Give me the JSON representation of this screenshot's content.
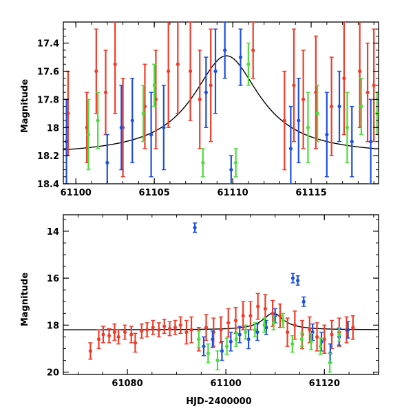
{
  "chart_data": [
    {
      "type": "scatter",
      "panel": "top",
      "title": "",
      "xlabel": "",
      "ylabel": "Magnitude",
      "xlim": [
        61099.2,
        61119.3
      ],
      "ylim": [
        18.4,
        17.25
      ],
      "y_inverted": true,
      "grid": false,
      "x_ticks": [
        61100,
        61105,
        61110,
        61115
      ],
      "x_tick_labels": [
        "61100",
        "61105",
        "61110",
        "61115"
      ],
      "y_ticks": [
        17.4,
        17.6,
        17.8,
        18.0,
        18.2,
        18.4
      ],
      "y_tick_labels": [
        "17.4",
        "17.6",
        "17.8",
        "18",
        "18.2",
        "18.4"
      ],
      "model": {
        "name": "microlensing model",
        "color": "#000000",
        "t0": 61109.6,
        "baseline": 18.2,
        "peak": 17.49,
        "width": 2.6
      },
      "series": [
        {
          "name": "red",
          "color": "#f23a2a",
          "x": [
            61099.5,
            61100.7,
            61101.3,
            61101.9,
            61102.5,
            61103.0,
            61104.4,
            61105.1,
            61105.9,
            61106.5,
            61107.3,
            61107.9,
            61108.6,
            61111.3,
            61113.3,
            61113.9,
            61114.5,
            61115.3,
            61116.3,
            61117.1,
            61118.1,
            61118.6,
            61119.0
          ],
          "y": [
            17.9,
            18.0,
            17.6,
            17.75,
            17.55,
            18.0,
            17.85,
            17.8,
            17.6,
            17.55,
            17.6,
            17.8,
            17.7,
            17.45,
            17.95,
            17.7,
            17.8,
            17.75,
            17.85,
            17.65,
            17.6,
            17.75,
            17.7
          ],
          "err": [
            0.3,
            0.25,
            0.3,
            0.3,
            0.35,
            0.35,
            0.3,
            0.35,
            0.4,
            0.35,
            0.35,
            0.35,
            0.4,
            0.2,
            0.35,
            0.4,
            0.35,
            0.4,
            0.35,
            0.4,
            0.4,
            0.35,
            0.4
          ]
        },
        {
          "name": "blue",
          "color": "#1f4fe0",
          "x": [
            61099.4,
            61102.0,
            61102.9,
            61103.6,
            61104.8,
            61105.6,
            61108.3,
            61108.9,
            61109.5,
            61109.9,
            61110.5,
            61113.7,
            61114.2,
            61116.0,
            61116.8,
            61117.6,
            61118.8
          ],
          "y": [
            18.1,
            18.25,
            18.0,
            17.95,
            18.05,
            18.0,
            17.75,
            17.6,
            17.45,
            18.3,
            17.5,
            18.15,
            17.95,
            18.05,
            17.85,
            18.1,
            18.1
          ],
          "err": [
            0.3,
            0.2,
            0.3,
            0.3,
            0.3,
            0.3,
            0.25,
            0.3,
            0.2,
            0.1,
            0.2,
            0.3,
            0.3,
            0.3,
            0.25,
            0.25,
            0.3
          ]
        },
        {
          "name": "green",
          "color": "#4ddc3c",
          "x": [
            61100.8,
            61101.4,
            61104.3,
            61105.0,
            61108.1,
            61110.2,
            61111.0,
            61114.8,
            61115.4,
            61117.3,
            61118.2,
            61119.2
          ],
          "y": [
            18.05,
            17.95,
            17.9,
            17.7,
            18.25,
            18.25,
            17.55,
            18.0,
            17.9,
            18.0,
            17.85,
            17.9
          ],
          "err": [
            0.25,
            0.2,
            0.2,
            0.15,
            0.1,
            0.1,
            0.15,
            0.25,
            0.2,
            0.25,
            0.2,
            0.15
          ]
        }
      ]
    },
    {
      "type": "scatter",
      "panel": "bottom",
      "title": "",
      "xlabel": "HJD-2400000",
      "ylabel": "Magnitude",
      "xlim": [
        61067,
        61131
      ],
      "ylim": [
        20.1,
        13.3
      ],
      "y_inverted": true,
      "grid": false,
      "x_ticks": [
        61080,
        61100,
        61120
      ],
      "x_tick_labels": [
        "61080",
        "61100",
        "61120"
      ],
      "y_ticks": [
        14,
        16,
        18,
        20
      ],
      "y_tick_labels": [
        "14",
        "16",
        "18",
        "20"
      ],
      "model": {
        "name": "microlensing model",
        "color": "#000000",
        "t0": 61109.6,
        "baseline": 18.2,
        "peak": 17.49,
        "width": 2.6
      },
      "series": [
        {
          "name": "red",
          "color": "#f23a2a",
          "x": [
            61072.5,
            61074.2,
            61075.1,
            61076.3,
            61077.4,
            61078.2,
            61079.5,
            61080.8,
            61081.6,
            61082.9,
            61084.0,
            61085.2,
            61086.4,
            61087.5,
            61088.6,
            61089.7,
            61090.8,
            61092.0,
            61093.0,
            61094.5,
            61096.0,
            61097.5,
            61099.0,
            61100.5,
            61102.0,
            61103.5,
            61105.0,
            61106.5,
            61108.0,
            61109.5,
            61111.0,
            61112.5,
            61114.0,
            61115.5,
            61117.0,
            61118.5,
            61120.0,
            61121.5,
            61123.0,
            61124.5,
            61125.8
          ],
          "y": [
            19.1,
            18.6,
            18.4,
            18.45,
            18.3,
            18.5,
            18.3,
            18.4,
            18.75,
            18.25,
            18.2,
            18.1,
            18.2,
            18.05,
            18.15,
            18.1,
            18.0,
            18.3,
            18.2,
            18.6,
            18.1,
            18.3,
            18.2,
            17.9,
            17.8,
            17.6,
            17.6,
            17.2,
            17.3,
            17.5,
            17.6,
            18.3,
            18.0,
            18.4,
            18.2,
            18.5,
            18.6,
            18.4,
            18.3,
            18.2,
            18.1
          ],
          "err": [
            0.35,
            0.4,
            0.35,
            0.3,
            0.35,
            0.3,
            0.3,
            0.35,
            0.4,
            0.3,
            0.3,
            0.3,
            0.3,
            0.3,
            0.3,
            0.3,
            0.35,
            0.5,
            0.55,
            0.5,
            0.55,
            0.6,
            0.55,
            0.6,
            0.55,
            0.6,
            0.6,
            0.55,
            0.6,
            0.55,
            0.5,
            0.6,
            0.6,
            0.6,
            0.55,
            0.6,
            0.6,
            0.6,
            0.6,
            0.55,
            0.5
          ]
        },
        {
          "name": "blue",
          "color": "#1f4fe0",
          "x": [
            61093.7,
            61095.5,
            61097.3,
            61099.2,
            61101.0,
            61102.8,
            61104.6,
            61106.4,
            61108.2,
            61110.0,
            61113.6,
            61114.6,
            61115.8,
            61117.6,
            61119.4,
            61121.2,
            61123.0,
            61124.8
          ],
          "y": [
            13.85,
            18.9,
            18.6,
            19.1,
            18.7,
            18.4,
            18.6,
            18.3,
            18.1,
            17.6,
            16.0,
            16.1,
            17.0,
            18.3,
            18.7,
            19.2,
            18.5,
            18.2
          ],
          "err": [
            0.2,
            0.4,
            0.35,
            0.4,
            0.4,
            0.35,
            0.4,
            0.35,
            0.3,
            0.3,
            0.2,
            0.2,
            0.2,
            0.35,
            0.4,
            0.4,
            0.35,
            0.35
          ]
        },
        {
          "name": "green",
          "color": "#4ddc3c",
          "x": [
            61094.5,
            61096.4,
            61098.3,
            61100.2,
            61102.1,
            61104.0,
            61105.9,
            61107.8,
            61109.7,
            61111.6,
            61113.5,
            61115.4,
            61117.3,
            61119.2,
            61121.1,
            61123.0
          ],
          "y": [
            18.6,
            19.2,
            19.5,
            18.9,
            18.6,
            18.3,
            18.2,
            18.0,
            17.9,
            17.8,
            18.8,
            18.6,
            18.7,
            18.9,
            19.6,
            18.4
          ],
          "err": [
            0.35,
            0.4,
            0.4,
            0.35,
            0.3,
            0.3,
            0.3,
            0.3,
            0.3,
            0.3,
            0.35,
            0.3,
            0.35,
            0.35,
            0.4,
            0.3
          ]
        }
      ]
    }
  ]
}
